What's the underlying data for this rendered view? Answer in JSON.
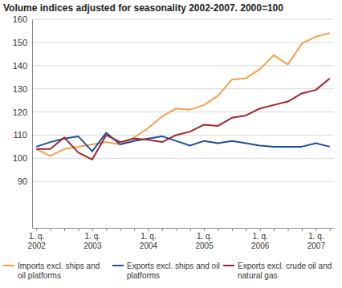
{
  "chart_data": {
    "type": "line",
    "title": "Volume indices adjusted for seasonality 2002-2007. 2000=100",
    "categories": [
      "1. q.\n2002",
      null,
      null,
      null,
      "1. q.\n2003",
      null,
      null,
      null,
      "1. q.\n2004",
      null,
      null,
      null,
      "1. q.\n2005",
      null,
      null,
      null,
      "1. q.\n2006",
      null,
      null,
      null,
      "1. q.\n2007",
      null
    ],
    "ylim": [
      70,
      160
    ],
    "yticks": [
      90,
      100,
      110,
      120,
      130,
      140,
      150,
      160
    ],
    "grid": true,
    "legend": "bottom",
    "series": [
      {
        "name": "Imports excl. ships and oil platforms",
        "color": "#f5a04a",
        "values": [
          104,
          101,
          104,
          105,
          106,
          107,
          106,
          109,
          113,
          118,
          121.5,
          121,
          123,
          127,
          134,
          134.5,
          138.5,
          144.5,
          140.5,
          149.5,
          152.5,
          154
        ]
      },
      {
        "name": "Exports excl. ships and oil platforms",
        "color": "#1f4e9c",
        "values": [
          105,
          107,
          108.5,
          109.5,
          103,
          111,
          106,
          107.5,
          108.5,
          109.5,
          107.5,
          105.5,
          107.5,
          106.5,
          107.5,
          106.5,
          105.5,
          105,
          105,
          105,
          106.5,
          105
        ]
      },
      {
        "name": "Exports excl. crude oil and natural gas",
        "color": "#a0252b",
        "values": [
          104,
          104,
          109,
          102.5,
          99.5,
          110,
          107,
          108.5,
          108,
          107,
          110,
          111.5,
          114.5,
          114,
          117.5,
          118.5,
          121.5,
          123,
          124.5,
          128,
          129.5,
          134.5
        ]
      }
    ]
  }
}
